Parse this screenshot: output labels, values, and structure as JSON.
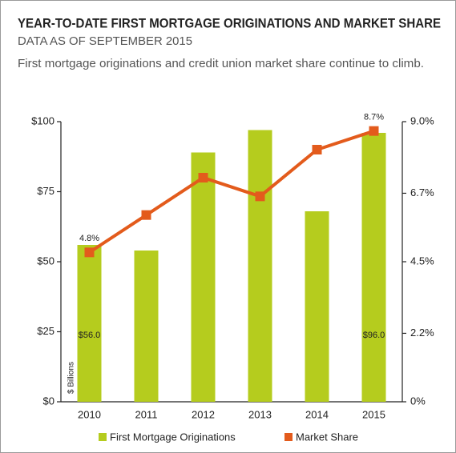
{
  "chart_data": {
    "type": "bar",
    "title": "YEAR-TO-DATE FIRST MORTGAGE ORIGINATIONS AND MARKET SHARE",
    "subtitle": "DATA AS OF SEPTEMBER 2015",
    "description": "First mortgage originations and credit union market share continue to climb.",
    "y_label": "$ Billions",
    "categories": [
      "2010",
      "2011",
      "2012",
      "2013",
      "2014",
      "2015"
    ],
    "series": [
      {
        "name": "First Mortgage Originations",
        "type": "bar",
        "color": "#b5cc1e",
        "values": [
          56,
          54,
          89,
          97,
          68,
          96
        ],
        "value_labels": [
          "$56.0",
          null,
          null,
          null,
          null,
          "$96.0"
        ]
      },
      {
        "name": "Market Share",
        "type": "line",
        "axis": "y2",
        "color": "#e35b1c",
        "values": [
          4.8,
          6.0,
          7.2,
          6.6,
          8.1,
          8.7
        ],
        "value_labels": [
          "4.8%",
          null,
          null,
          null,
          null,
          "8.7%"
        ]
      }
    ],
    "ylim": [
      0,
      100
    ],
    "yticks": [
      {
        "value": 0,
        "label": "$0"
      },
      {
        "value": 25,
        "label": "$25"
      },
      {
        "value": 50,
        "label": "$50"
      },
      {
        "value": 75,
        "label": "$75"
      },
      {
        "value": 100,
        "label": "$100"
      }
    ],
    "y2lim": [
      0,
      9
    ],
    "y2ticks": [
      {
        "value": 0,
        "label": "0%"
      },
      {
        "value": 2.2,
        "label": "2.2%"
      },
      {
        "value": 4.5,
        "label": "4.5%"
      },
      {
        "value": 6.7,
        "label": "6.7%"
      },
      {
        "value": 9,
        "label": "9.0%"
      }
    ],
    "grid": false
  }
}
